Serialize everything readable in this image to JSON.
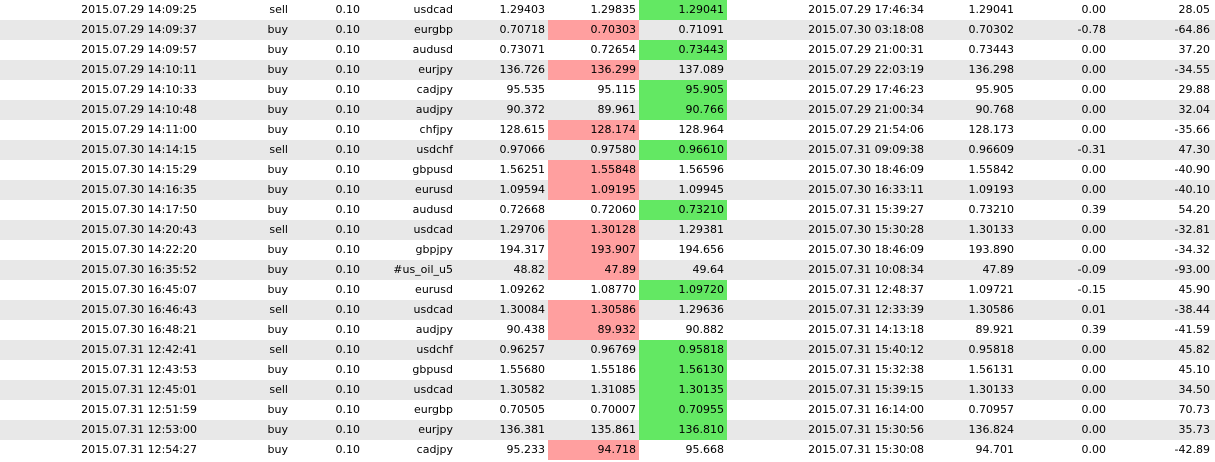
{
  "colors": {
    "row_alt_background": "#e8e8e8",
    "stop_loss_hit": "#ff9f9f",
    "take_profit_hit": "#63e863"
  },
  "rows": [
    {
      "open_time": "2015.07.29 14:09:25",
      "type": "sell",
      "size": "0.10",
      "item": "usdcad",
      "open_price": "1.29403",
      "sl": "1.29835",
      "tp": "1.29041",
      "close_time": "2015.07.29 17:46:34",
      "close_price": "1.29041",
      "commission": "0.00",
      "profit": "28.05",
      "hit": "tp"
    },
    {
      "open_time": "2015.07.29 14:09:37",
      "type": "buy",
      "size": "0.10",
      "item": "eurgbp",
      "open_price": "0.70718",
      "sl": "0.70303",
      "tp": "0.71091",
      "close_time": "2015.07.30 03:18:08",
      "close_price": "0.70302",
      "commission": "-0.78",
      "profit": "-64.86",
      "hit": "sl"
    },
    {
      "open_time": "2015.07.29 14:09:57",
      "type": "buy",
      "size": "0.10",
      "item": "audusd",
      "open_price": "0.73071",
      "sl": "0.72654",
      "tp": "0.73443",
      "close_time": "2015.07.29 21:00:31",
      "close_price": "0.73443",
      "commission": "0.00",
      "profit": "37.20",
      "hit": "tp"
    },
    {
      "open_time": "2015.07.29 14:10:11",
      "type": "buy",
      "size": "0.10",
      "item": "eurjpy",
      "open_price": "136.726",
      "sl": "136.299",
      "tp": "137.089",
      "close_time": "2015.07.29 22:03:19",
      "close_price": "136.298",
      "commission": "0.00",
      "profit": "-34.55",
      "hit": "sl"
    },
    {
      "open_time": "2015.07.29 14:10:33",
      "type": "buy",
      "size": "0.10",
      "item": "cadjpy",
      "open_price": "95.535",
      "sl": "95.115",
      "tp": "95.905",
      "close_time": "2015.07.29 17:46:23",
      "close_price": "95.905",
      "commission": "0.00",
      "profit": "29.88",
      "hit": "tp"
    },
    {
      "open_time": "2015.07.29 14:10:48",
      "type": "buy",
      "size": "0.10",
      "item": "audjpy",
      "open_price": "90.372",
      "sl": "89.961",
      "tp": "90.766",
      "close_time": "2015.07.29 21:00:34",
      "close_price": "90.768",
      "commission": "0.00",
      "profit": "32.04",
      "hit": "tp"
    },
    {
      "open_time": "2015.07.29 14:11:00",
      "type": "buy",
      "size": "0.10",
      "item": "chfjpy",
      "open_price": "128.615",
      "sl": "128.174",
      "tp": "128.964",
      "close_time": "2015.07.29 21:54:06",
      "close_price": "128.173",
      "commission": "0.00",
      "profit": "-35.66",
      "hit": "sl"
    },
    {
      "open_time": "2015.07.30 14:14:15",
      "type": "sell",
      "size": "0.10",
      "item": "usdchf",
      "open_price": "0.97066",
      "sl": "0.97580",
      "tp": "0.96610",
      "close_time": "2015.07.31 09:09:38",
      "close_price": "0.96609",
      "commission": "-0.31",
      "profit": "47.30",
      "hit": "tp"
    },
    {
      "open_time": "2015.07.30 14:15:29",
      "type": "buy",
      "size": "0.10",
      "item": "gbpusd",
      "open_price": "1.56251",
      "sl": "1.55848",
      "tp": "1.56596",
      "close_time": "2015.07.30 18:46:09",
      "close_price": "1.55842",
      "commission": "0.00",
      "profit": "-40.90",
      "hit": "sl"
    },
    {
      "open_time": "2015.07.30 14:16:35",
      "type": "buy",
      "size": "0.10",
      "item": "eurusd",
      "open_price": "1.09594",
      "sl": "1.09195",
      "tp": "1.09945",
      "close_time": "2015.07.30 16:33:11",
      "close_price": "1.09193",
      "commission": "0.00",
      "profit": "-40.10",
      "hit": "sl"
    },
    {
      "open_time": "2015.07.30 14:17:50",
      "type": "buy",
      "size": "0.10",
      "item": "audusd",
      "open_price": "0.72668",
      "sl": "0.72060",
      "tp": "0.73210",
      "close_time": "2015.07.31 15:39:27",
      "close_price": "0.73210",
      "commission": "0.39",
      "profit": "54.20",
      "hit": "tp"
    },
    {
      "open_time": "2015.07.30 14:20:43",
      "type": "sell",
      "size": "0.10",
      "item": "usdcad",
      "open_price": "1.29706",
      "sl": "1.30128",
      "tp": "1.29381",
      "close_time": "2015.07.30 15:30:28",
      "close_price": "1.30133",
      "commission": "0.00",
      "profit": "-32.81",
      "hit": "sl"
    },
    {
      "open_time": "2015.07.30 14:22:20",
      "type": "buy",
      "size": "0.10",
      "item": "gbpjpy",
      "open_price": "194.317",
      "sl": "193.907",
      "tp": "194.656",
      "close_time": "2015.07.30 18:46:09",
      "close_price": "193.890",
      "commission": "0.00",
      "profit": "-34.32",
      "hit": "sl"
    },
    {
      "open_time": "2015.07.30 16:35:52",
      "type": "buy",
      "size": "0.10",
      "item": "#us_oil_u5",
      "open_price": "48.82",
      "sl": "47.89",
      "tp": "49.64",
      "close_time": "2015.07.31 10:08:34",
      "close_price": "47.89",
      "commission": "-0.09",
      "profit": "-93.00",
      "hit": "sl"
    },
    {
      "open_time": "2015.07.30 16:45:07",
      "type": "buy",
      "size": "0.10",
      "item": "eurusd",
      "open_price": "1.09262",
      "sl": "1.08770",
      "tp": "1.09720",
      "close_time": "2015.07.31 12:48:37",
      "close_price": "1.09721",
      "commission": "-0.15",
      "profit": "45.90",
      "hit": "tp"
    },
    {
      "open_time": "2015.07.30 16:46:43",
      "type": "sell",
      "size": "0.10",
      "item": "usdcad",
      "open_price": "1.30084",
      "sl": "1.30586",
      "tp": "1.29636",
      "close_time": "2015.07.31 12:33:39",
      "close_price": "1.30586",
      "commission": "0.01",
      "profit": "-38.44",
      "hit": "sl"
    },
    {
      "open_time": "2015.07.30 16:48:21",
      "type": "buy",
      "size": "0.10",
      "item": "audjpy",
      "open_price": "90.438",
      "sl": "89.932",
      "tp": "90.882",
      "close_time": "2015.07.31 14:13:18",
      "close_price": "89.921",
      "commission": "0.39",
      "profit": "-41.59",
      "hit": "sl"
    },
    {
      "open_time": "2015.07.31 12:42:41",
      "type": "sell",
      "size": "0.10",
      "item": "usdchf",
      "open_price": "0.96257",
      "sl": "0.96769",
      "tp": "0.95818",
      "close_time": "2015.07.31 15:40:12",
      "close_price": "0.95818",
      "commission": "0.00",
      "profit": "45.82",
      "hit": "tp"
    },
    {
      "open_time": "2015.07.31 12:43:53",
      "type": "buy",
      "size": "0.10",
      "item": "gbpusd",
      "open_price": "1.55680",
      "sl": "1.55186",
      "tp": "1.56130",
      "close_time": "2015.07.31 15:32:38",
      "close_price": "1.56131",
      "commission": "0.00",
      "profit": "45.10",
      "hit": "tp"
    },
    {
      "open_time": "2015.07.31 12:45:01",
      "type": "sell",
      "size": "0.10",
      "item": "usdcad",
      "open_price": "1.30582",
      "sl": "1.31085",
      "tp": "1.30135",
      "close_time": "2015.07.31 15:39:15",
      "close_price": "1.30133",
      "commission": "0.00",
      "profit": "34.50",
      "hit": "tp"
    },
    {
      "open_time": "2015.07.31 12:51:59",
      "type": "buy",
      "size": "0.10",
      "item": "eurgbp",
      "open_price": "0.70505",
      "sl": "0.70007",
      "tp": "0.70955",
      "close_time": "2015.07.31 16:14:00",
      "close_price": "0.70957",
      "commission": "0.00",
      "profit": "70.73",
      "hit": "tp"
    },
    {
      "open_time": "2015.07.31 12:53:00",
      "type": "buy",
      "size": "0.10",
      "item": "eurjpy",
      "open_price": "136.381",
      "sl": "135.861",
      "tp": "136.810",
      "close_time": "2015.07.31 15:30:56",
      "close_price": "136.824",
      "commission": "0.00",
      "profit": "35.73",
      "hit": "tp"
    },
    {
      "open_time": "2015.07.31 12:54:27",
      "type": "buy",
      "size": "0.10",
      "item": "cadjpy",
      "open_price": "95.233",
      "sl": "94.718",
      "tp": "95.668",
      "close_time": "2015.07.31 15:30:08",
      "close_price": "94.701",
      "commission": "0.00",
      "profit": "-42.89",
      "hit": "sl"
    }
  ]
}
